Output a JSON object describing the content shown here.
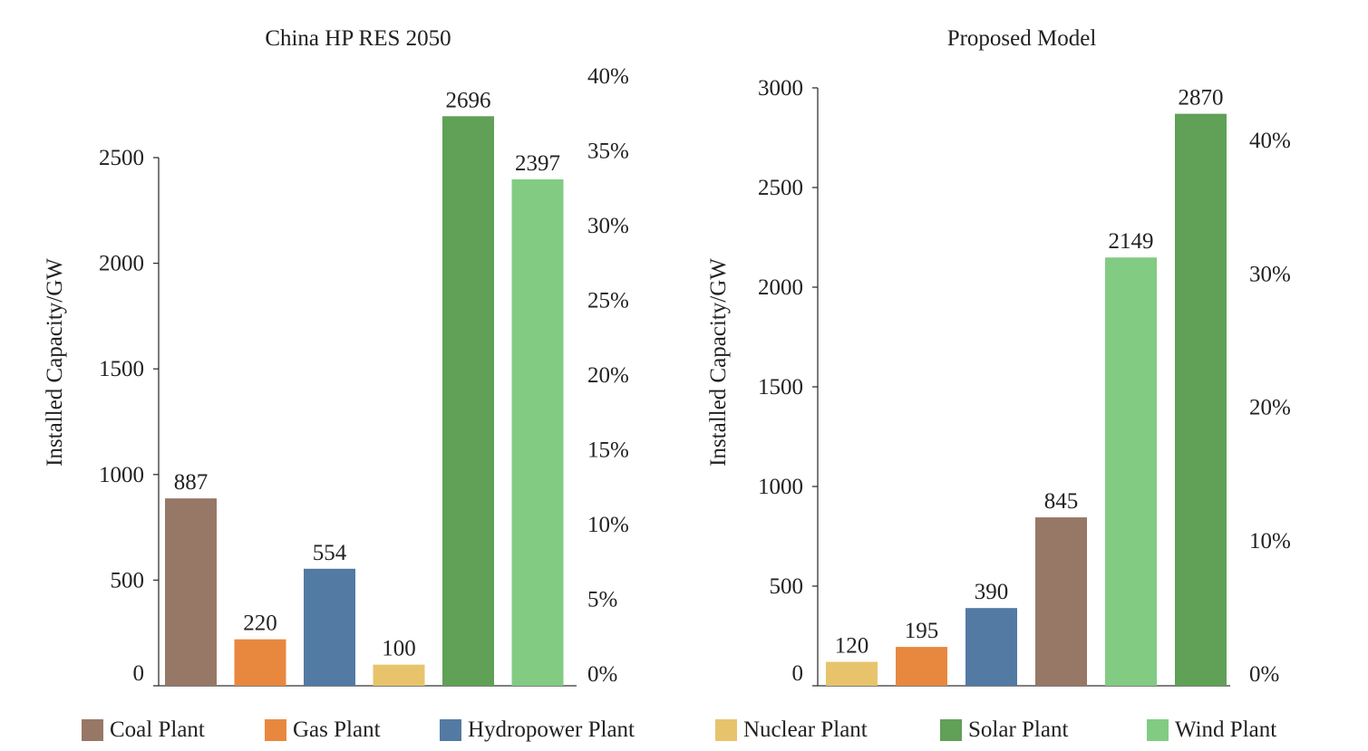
{
  "colors": {
    "coal": "#977766",
    "gas": "#e8883f",
    "hydro": "#527aa3",
    "nuclear": "#e7c46c",
    "solar": "#60a057",
    "wind": "#82cb83"
  },
  "legend": [
    {
      "label": "Coal Plant",
      "color_key": "coal"
    },
    {
      "label": "Gas Plant",
      "color_key": "gas"
    },
    {
      "label": "Hydropower Plant",
      "color_key": "hydro"
    },
    {
      "label": "Nuclear Plant",
      "color_key": "nuclear"
    },
    {
      "label": "Solar Plant",
      "color_key": "solar"
    },
    {
      "label": "Wind Plant",
      "color_key": "wind"
    }
  ],
  "chart_data": [
    {
      "type": "bar",
      "title": "China HP RES 2050",
      "ylabel": "Installed Capacity/GW",
      "ylim": [
        0,
        2500
      ],
      "yticks": [
        "0",
        "500",
        "1000",
        "1500",
        "2000",
        "2500"
      ],
      "y2ticks": [
        "0%",
        "5%",
        "10%",
        "15%",
        "20%",
        "25%",
        "30%",
        "35%",
        "40%"
      ],
      "categories": [
        "Coal Plant",
        "Gas Plant",
        "Hydropower Plant",
        "Nuclear Plant",
        "Solar Plant",
        "Wind Plant"
      ],
      "values": [
        887,
        220,
        554,
        100,
        2696,
        2397
      ],
      "value_labels": [
        "887",
        "220",
        "554",
        "100",
        "2696",
        "2397"
      ],
      "color_keys": [
        "coal",
        "gas",
        "hydro",
        "nuclear",
        "solar",
        "wind"
      ],
      "grid": false,
      "legend": "bottom"
    },
    {
      "type": "bar",
      "title": "Proposed Model",
      "ylabel": "Installed Capacity/GW",
      "ylim": [
        0,
        3000
      ],
      "yticks": [
        "0",
        "500",
        "1000",
        "1500",
        "2000",
        "2500",
        "3000"
      ],
      "y2ticks": [
        "0%",
        "10%",
        "20%",
        "30%",
        "40%"
      ],
      "categories": [
        "Nuclear Plant",
        "Gas Plant",
        "Hydropower Plant",
        "Coal Plant",
        "Wind Plant",
        "Solar Plant"
      ],
      "values": [
        120,
        195,
        390,
        845,
        2149,
        2870
      ],
      "value_labels": [
        "120",
        "195",
        "390",
        "845",
        "2149",
        "2870"
      ],
      "color_keys": [
        "nuclear",
        "gas",
        "hydro",
        "coal",
        "wind",
        "solar"
      ],
      "grid": false,
      "legend": "bottom"
    }
  ]
}
